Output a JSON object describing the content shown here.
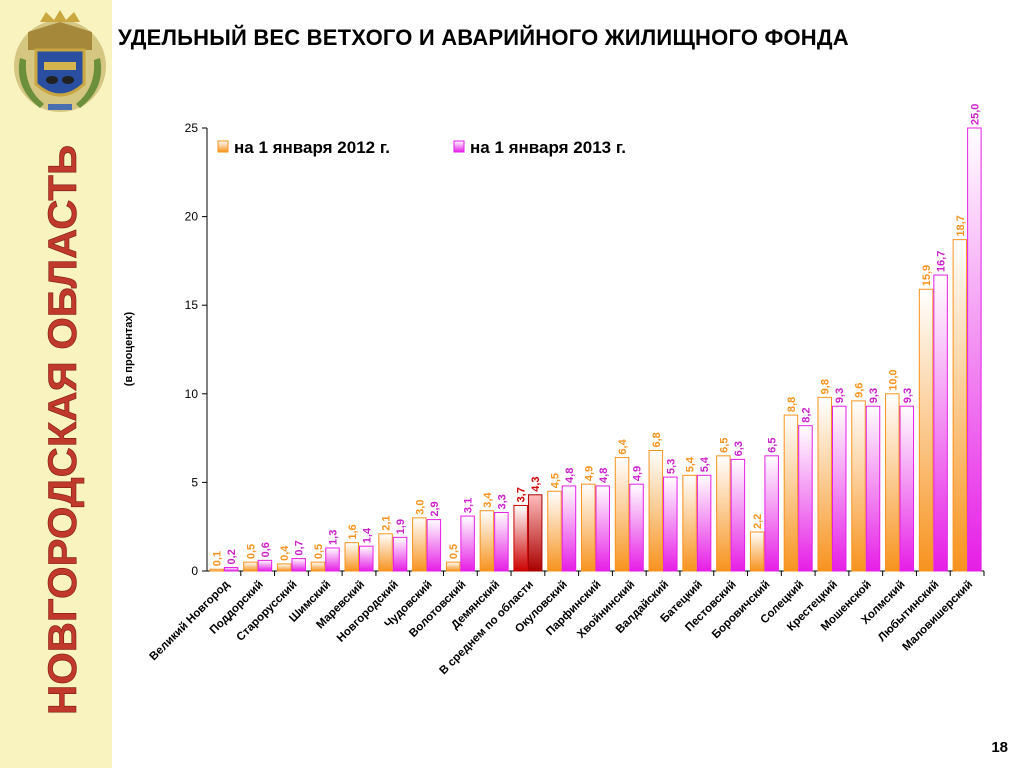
{
  "header": {
    "title": "УДЕЛЬНЫЙ ВЕС ВЕТХОГО И АВАРИЙНОГО ЖИЛИЩНОГО ФОНДА",
    "page_number": "18"
  },
  "sidebar": {
    "vertical_title": "НОВГОРОДСКАЯ ОБЛАСТЬ",
    "vertical_title_color": "#c0392b",
    "emblem_icon": "coat-of-arms-icon"
  },
  "chart_data": {
    "type": "bar",
    "ylabel": "(в процентах)",
    "ylim": [
      0,
      25
    ],
    "yticks": [
      "0",
      "5",
      "10",
      "15",
      "20",
      "25"
    ],
    "legend_position": "top-left",
    "categories": [
      "Великий Новгород",
      "Поддорский",
      "Старорусский",
      "Шимский",
      "Маревский",
      "Новгородский",
      "Чудовский",
      "Волотовский",
      "Демянский",
      "В среднем по области",
      "Окуловский",
      "Парфинский",
      "Хвойнинский",
      "Валдайский",
      "Батецкий",
      "Пестовский",
      "Боровичский",
      "Солецкий",
      "Крестецкий",
      "Мошенской",
      "Холмский",
      "Любытинский",
      "Маловишерский"
    ],
    "highlight_category": "В среднем по области",
    "series": [
      {
        "name": "на 1 января 2012 г.",
        "color": "#f7931e",
        "highlight_color": "#cc0000",
        "values": [
          0.1,
          0.5,
          0.4,
          0.5,
          1.6,
          2.1,
          3.0,
          0.5,
          3.4,
          3.7,
          4.5,
          4.9,
          6.4,
          6.8,
          5.4,
          6.5,
          2.2,
          8.8,
          9.8,
          9.6,
          10.0,
          15.9,
          18.7
        ],
        "labels": [
          "0,1",
          "0,5",
          "0,4",
          "0,5",
          "1,6",
          "2,1",
          "3,0",
          "0,5",
          "3,4",
          "3,7",
          "4,5",
          "4,9",
          "6,4",
          "6,8",
          "5,4",
          "6,5",
          "2,2",
          "8,8",
          "9,8",
          "9,6",
          "10,0",
          "15,9",
          "18,7"
        ]
      },
      {
        "name": "на 1 января 2013 г.",
        "color": "#e61ee6",
        "highlight_color": "#aa0000",
        "values": [
          0.2,
          0.6,
          0.7,
          1.3,
          1.4,
          1.9,
          2.9,
          3.1,
          3.3,
          4.3,
          4.8,
          4.8,
          4.9,
          5.3,
          5.4,
          6.3,
          6.5,
          8.2,
          9.3,
          9.3,
          9.3,
          16.7,
          25.0
        ],
        "labels": [
          "0,2",
          "0,6",
          "0,7",
          "1,3",
          "1,4",
          "1,9",
          "2,9",
          "3,1",
          "3,3",
          "4,3",
          "4,8",
          "4,8",
          "4,9",
          "5,3",
          "5,4",
          "6,3",
          "6,5",
          "8,2",
          "9,3",
          "9,3",
          "9,3",
          "16,7",
          "25,0"
        ]
      }
    ]
  }
}
